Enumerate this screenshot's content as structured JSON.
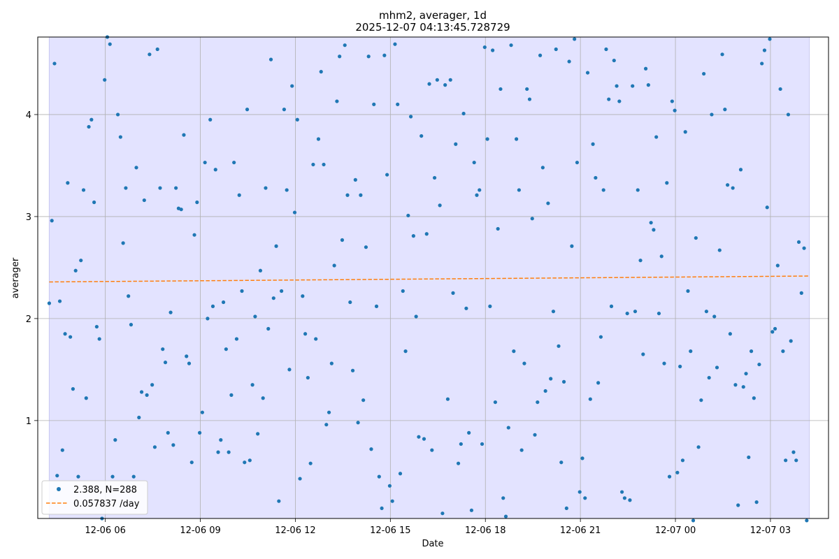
{
  "chart_data": {
    "type": "scatter",
    "title": "mhm2, averager, 1d",
    "subtitle": "2025-12-07 04:13:45.728729",
    "xlabel": "Date",
    "ylabel": "averager",
    "x_ticks": [
      "12-06 06",
      "12-06 09",
      "12-06 12",
      "12-06 15",
      "12-06 18",
      "12-06 21",
      "12-07 00",
      "12-07 03"
    ],
    "y_ticks": [
      "1",
      "2",
      "3",
      "4"
    ],
    "x_range": [
      "2025-12-06 03:52",
      "2025-12-07 04:50"
    ],
    "ylim": [
      0.04,
      4.76
    ],
    "shaded_span": [
      "2025-12-06 04:13:45",
      "2025-12-07 04:13:45"
    ],
    "grid": true,
    "legend_position": "lower-left",
    "colors": {
      "points": "#1f77b4",
      "trend": "#ff7f0e",
      "span": "#e3e3ff",
      "grid": "#b0b0b0"
    },
    "series": [
      {
        "name": "2.388, N=288",
        "kind": "points",
        "x_start": "2025-12-06 04:13:45",
        "x_step_minutes": 5,
        "values": [
          2.15,
          2.96,
          4.5,
          0.46,
          2.17,
          0.71,
          1.85,
          3.33,
          1.82,
          1.31,
          2.47,
          0.45,
          2.57,
          3.26,
          1.22,
          3.88,
          3.95,
          3.14,
          1.92,
          1.8,
          0.04,
          4.34,
          4.76,
          4.69,
          0.45,
          0.81,
          4.0,
          3.78,
          2.74,
          3.28,
          2.22,
          1.94,
          0.45,
          3.48,
          1.03,
          1.28,
          3.16,
          1.25,
          4.59,
          1.35,
          0.74,
          4.64,
          3.28,
          1.7,
          1.57,
          0.88,
          2.06,
          0.76,
          3.28,
          3.08,
          3.07,
          3.8,
          1.63,
          1.56,
          0.59,
          2.82,
          3.14,
          0.88,
          1.08,
          3.53,
          2.0,
          3.95,
          2.12,
          3.46,
          0.69,
          0.81,
          2.16,
          1.7,
          0.69,
          1.25,
          3.53,
          1.8,
          3.21,
          2.27,
          0.59,
          4.05,
          0.61,
          1.35,
          2.02,
          0.87,
          2.47,
          1.22,
          3.28,
          1.9,
          4.54,
          2.2,
          2.71,
          0.21,
          2.27,
          4.05,
          3.26,
          1.5,
          4.28,
          3.04,
          3.95,
          0.43,
          2.22,
          1.85,
          1.42,
          0.58,
          3.51,
          1.8,
          3.76,
          4.42,
          3.51,
          0.96,
          1.08,
          1.56,
          2.52,
          4.13,
          4.57,
          2.77,
          4.68,
          3.21,
          2.16,
          1.49,
          3.36,
          0.98,
          3.21,
          1.2,
          2.7,
          4.57,
          0.72,
          4.1,
          2.12,
          0.45,
          0.14,
          4.58,
          3.41,
          0.36,
          0.21,
          4.69,
          4.1,
          0.48,
          2.27,
          1.68,
          3.01,
          3.98,
          2.81,
          2.02,
          0.84,
          3.79,
          0.82,
          2.83,
          4.3,
          0.71,
          3.38,
          4.34,
          3.11,
          0.09,
          4.29,
          1.21,
          4.34,
          2.25,
          3.71,
          0.58,
          0.77,
          4.01,
          2.1,
          0.88,
          0.12,
          3.53,
          3.21,
          3.26,
          0.77,
          4.66,
          3.76,
          2.12,
          4.63,
          1.18,
          2.88,
          4.25,
          0.24,
          0.06,
          0.93,
          4.68,
          1.68,
          3.76,
          3.26,
          0.71,
          1.56,
          4.25,
          4.15,
          2.98,
          0.86,
          1.18,
          4.58,
          3.48,
          1.29,
          3.13,
          1.41,
          2.07,
          4.64,
          1.73,
          0.59,
          1.38,
          0.14,
          4.52,
          2.71,
          4.74,
          3.53,
          0.3,
          0.63,
          0.24,
          4.41,
          1.21,
          3.71,
          3.38,
          1.37,
          1.82,
          3.26,
          4.64,
          4.15,
          2.12,
          4.53,
          4.28,
          4.13,
          0.3,
          0.24,
          2.05,
          0.22,
          4.28,
          2.07,
          3.26,
          2.57,
          1.65,
          4.45,
          4.29,
          2.94,
          2.87,
          3.78,
          2.05,
          2.61,
          1.56,
          3.33,
          0.45,
          4.13,
          4.04,
          0.49,
          1.53,
          0.61,
          3.83,
          2.27,
          1.68,
          0.02,
          2.79,
          0.74,
          1.2,
          4.4,
          2.07,
          1.42,
          4.0,
          2.02,
          1.52,
          2.67,
          4.59,
          4.05,
          3.31,
          1.85,
          3.28,
          1.35,
          0.17,
          3.46,
          1.33,
          1.46,
          0.64,
          1.68,
          1.22,
          0.2,
          1.55,
          4.5,
          4.63,
          3.09,
          4.74,
          1.87,
          1.9,
          2.52,
          4.25,
          1.68,
          0.61,
          4.0,
          1.78,
          0.69,
          0.61,
          2.75,
          2.25,
          2.69,
          0.02
        ]
      },
      {
        "name": "0.057837 /day",
        "kind": "trend",
        "x": [
          "2025-12-06 04:13:45",
          "2025-12-07 04:13:45"
        ],
        "values": [
          2.359,
          2.417
        ]
      }
    ]
  }
}
